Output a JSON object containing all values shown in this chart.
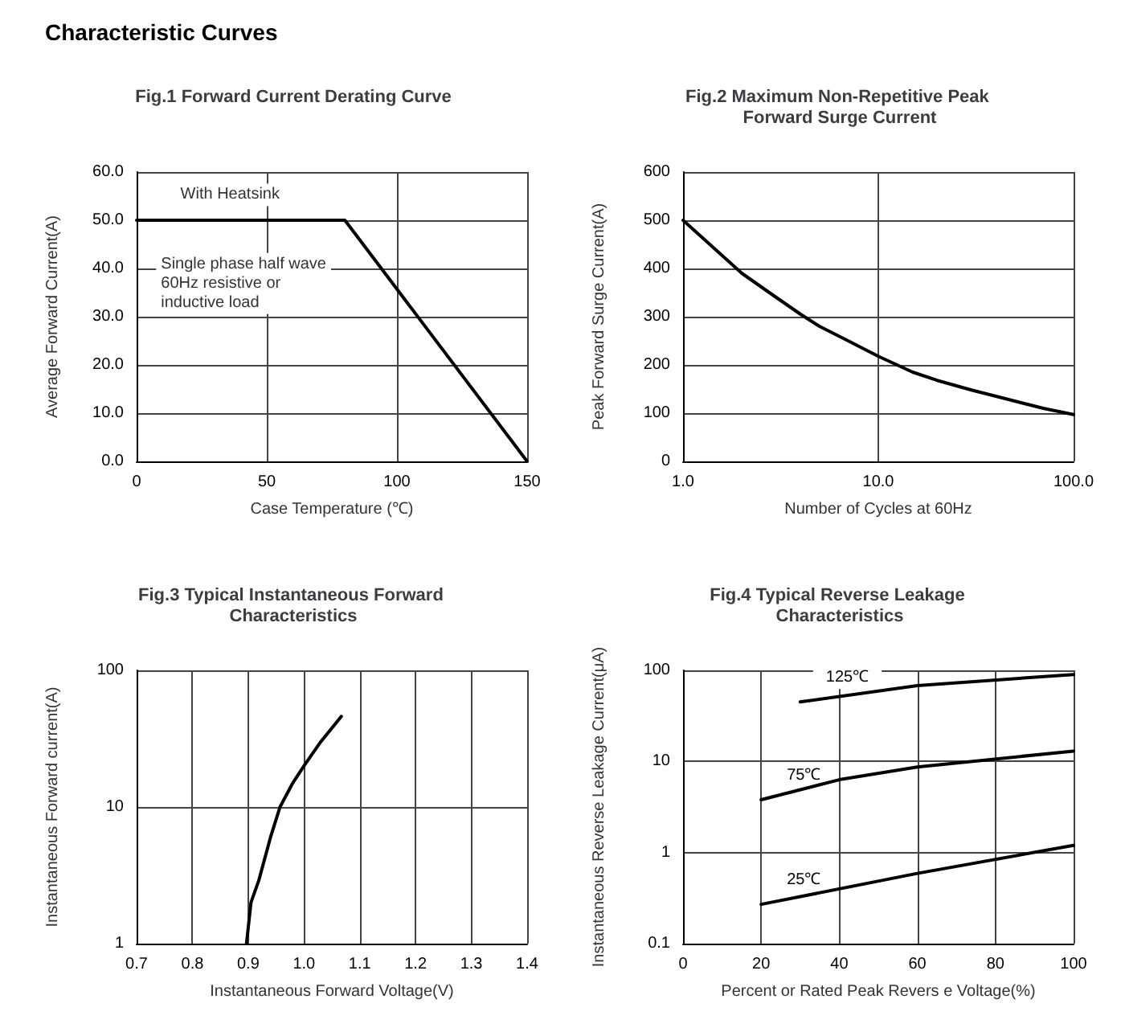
{
  "chart_data": [
    {
      "type": "other",
      "title": "Characteristic Curves"
    },
    {
      "type": "line",
      "title": "Fig.1 Forward Current Derating Curve",
      "xlabel": "Case Temperature (℃)",
      "ylabel": "Average Forward Current(A)",
      "series": [
        {
          "color": "#000000",
          "x": [
            0,
            80,
            150
          ],
          "values": [
            50,
            50,
            0
          ]
        }
      ],
      "xlim": [
        0,
        150
      ],
      "xticks": [
        0,
        50,
        100,
        150
      ],
      "ylim": [
        0,
        60
      ],
      "yticks": [
        {
          "value": 0,
          "label": "0.0"
        },
        {
          "value": 10,
          "label": "10.0"
        },
        {
          "value": 20,
          "label": "20.0"
        },
        {
          "value": 30,
          "label": "30.0"
        },
        {
          "value": 40,
          "label": "40.0"
        },
        {
          "value": 50,
          "label": "50.0"
        },
        {
          "value": 60,
          "label": "60.0"
        }
      ],
      "annotations": [
        "With Heatsink",
        "Single phase half wave\n60Hz resistive or\ninductive load"
      ],
      "grid": true,
      "marker": "none",
      "line_style": "solid",
      "legend": false
    },
    {
      "type": "line",
      "title": "Fig.2 Maximum Non-Repetitive Peak Forward Surge Current",
      "xlabel": "Number of Cycles at 60Hz",
      "ylabel": "Peak Forward Surge Current(A)",
      "series": [
        {
          "color": "#000000",
          "x": [
            1,
            2,
            3,
            4,
            5,
            7,
            10,
            15,
            20,
            30,
            50,
            70,
            100
          ],
          "values": [
            500,
            390,
            340,
            305,
            280,
            250,
            218,
            185,
            168,
            148,
            125,
            110,
            97
          ]
        }
      ],
      "xlim": [
        1,
        100
      ],
      "xticks": [
        {
          "value": 1,
          "label": "1.0"
        },
        {
          "value": 10,
          "label": "10.0"
        },
        {
          "value": 100,
          "label": "100.0"
        }
      ],
      "ylim": [
        0,
        600
      ],
      "yticks": [
        0,
        100,
        200,
        300,
        400,
        500,
        600
      ],
      "log": "x",
      "grid": true,
      "marker": "none",
      "line_style": "solid",
      "legend": false
    },
    {
      "type": "line",
      "title": "Fig.3 Typical Instantaneous Forward Characteristics",
      "xlabel": "Instantaneous Forward Voltage(V)",
      "ylabel": "Instantaneous Forward current(A)",
      "series": [
        {
          "color": "#000000",
          "x": [
            0.897,
            0.905,
            0.919,
            0.94,
            0.957,
            0.98,
            1.0,
            1.03,
            1.067
          ],
          "values": [
            1,
            2,
            2.9,
            6,
            10,
            15,
            20,
            30,
            46
          ]
        }
      ],
      "xlim": [
        0.7,
        1.4
      ],
      "xticks": [
        0.7,
        0.8,
        0.9,
        {
          "value": 1,
          "label": "1.0"
        },
        1.1,
        1.2,
        1.3,
        1.4
      ],
      "ylim": [
        1,
        100
      ],
      "yticks": [
        1,
        10,
        100
      ],
      "log": "y",
      "grid": true,
      "marker": "none",
      "line_style": "solid",
      "legend": false
    },
    {
      "type": "line",
      "title": "Fig.4 Typical Reverse Leakage Characteristics",
      "xlabel": "Percent or Rated Peak Revers e Voltage(%)",
      "ylabel": "Instantaneous Reverse Leakage Current(μA)",
      "series": [
        {
          "name": "125℃",
          "color": "#000000",
          "x": [
            30,
            60,
            100
          ],
          "values": [
            45,
            68,
            90
          ]
        },
        {
          "name": "75℃",
          "color": "#000000",
          "x": [
            20,
            40,
            60,
            100
          ],
          "values": [
            3.8,
            6.3,
            8.7,
            13
          ]
        },
        {
          "name": "25℃",
          "color": "#000000",
          "x": [
            20,
            60,
            100
          ],
          "values": [
            0.27,
            0.59,
            1.2
          ]
        }
      ],
      "xlim": [
        0,
        100
      ],
      "xticks": [
        0,
        20,
        40,
        60,
        80,
        100
      ],
      "ylim": [
        0.1,
        100
      ],
      "yticks": [
        0.1,
        1,
        10,
        100
      ],
      "log": "y",
      "grid": true,
      "marker": "none",
      "line_style": "solid",
      "legend": false
    }
  ]
}
